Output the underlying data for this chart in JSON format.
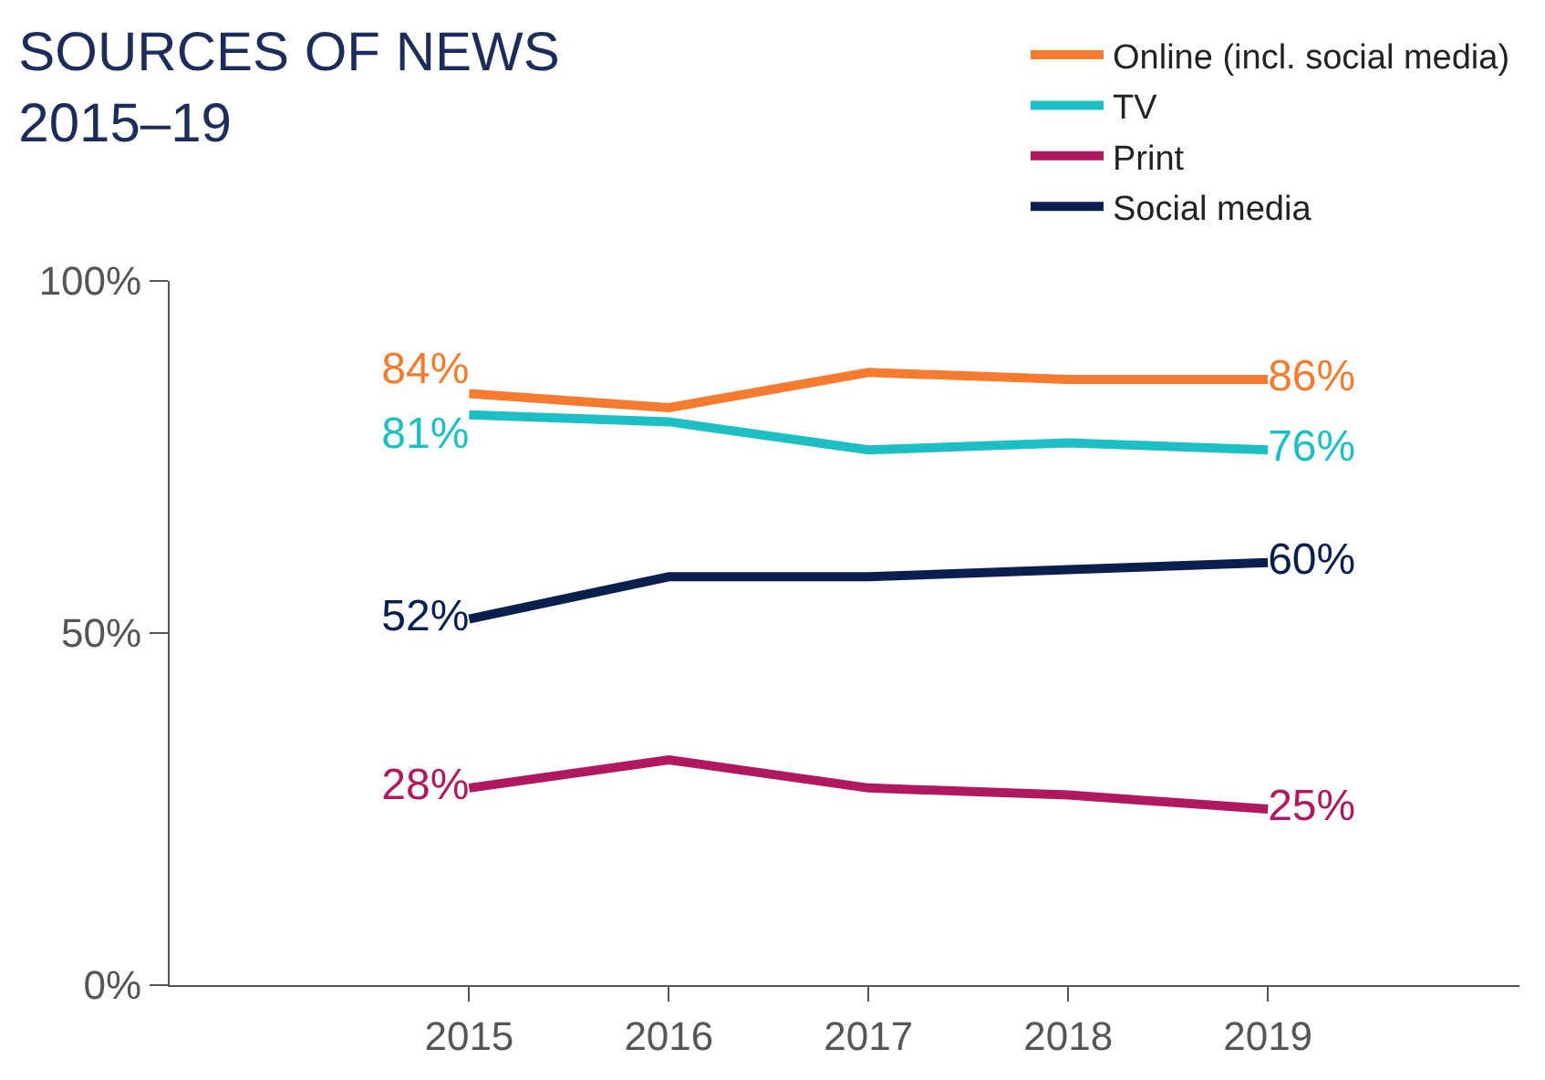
{
  "chart_data": {
    "type": "line",
    "title": "SOURCES OF NEWS\n2015–19",
    "categories": [
      "2015",
      "2016",
      "2017",
      "2018",
      "2019"
    ],
    "series": [
      {
        "name": "Online (incl. social media)",
        "color": "#f47b30",
        "values": [
          84,
          82,
          87,
          86,
          86
        ],
        "value_labels": [
          "84%",
          null,
          null,
          null,
          "86%"
        ]
      },
      {
        "name": "TV",
        "color": "#1ebfc4",
        "values": [
          81,
          80,
          76,
          77,
          76
        ],
        "value_labels": [
          "81%",
          null,
          null,
          null,
          "76%"
        ]
      },
      {
        "name": "Print",
        "color": "#b0195f",
        "values": [
          28,
          32,
          28,
          27,
          25
        ],
        "value_labels": [
          "28%",
          null,
          null,
          null,
          "25%"
        ]
      },
      {
        "name": "Social media",
        "color": "#0b1f4f",
        "values": [
          52,
          58,
          58,
          59,
          60
        ],
        "value_labels": [
          "52%",
          null,
          null,
          null,
          "60%"
        ]
      }
    ],
    "ylim": [
      0,
      100
    ],
    "yticks": [
      {
        "value": 0,
        "label": "0%"
      },
      {
        "value": 50,
        "label": "50%"
      },
      {
        "value": 100,
        "label": "100%"
      }
    ],
    "legend": "top right",
    "marker": "none",
    "line_style": "solid"
  }
}
